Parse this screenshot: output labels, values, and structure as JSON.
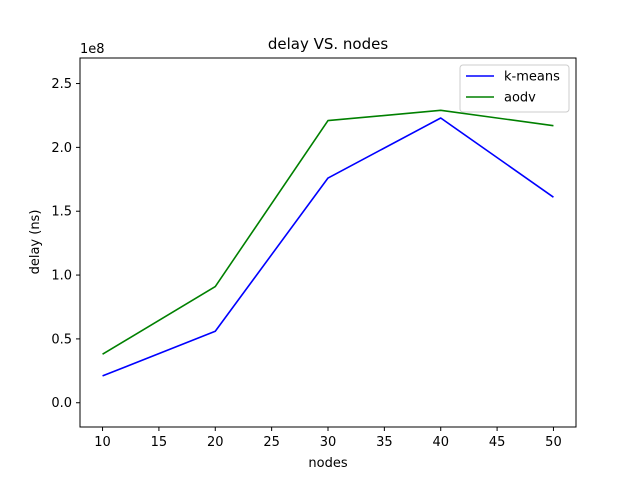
{
  "chart_data": {
    "type": "line",
    "title": "delay VS. nodes",
    "xlabel": "nodes",
    "ylabel": "delay (ns)",
    "y_scale_label": "1e8",
    "x": [
      10,
      20,
      30,
      40,
      50
    ],
    "xlim": [
      8,
      52
    ],
    "ylim": [
      -0.19,
      2.7
    ],
    "y_units_multiplier": 100000000,
    "x_ticks": [
      10,
      15,
      20,
      25,
      30,
      35,
      40,
      45,
      50
    ],
    "y_ticks": [
      0.0,
      0.5,
      1.0,
      1.5,
      2.0,
      2.5
    ],
    "x_tick_labels": [
      "10",
      "15",
      "20",
      "25",
      "30",
      "35",
      "40",
      "45",
      "50"
    ],
    "y_tick_labels": [
      "0.0",
      "0.5",
      "1.0",
      "1.5",
      "2.0",
      "2.5"
    ],
    "grid": false,
    "legend_position": "top-right",
    "series": [
      {
        "name": "k-means",
        "color": "#0000ff",
        "values": [
          0.21,
          0.56,
          1.76,
          2.23,
          1.61
        ]
      },
      {
        "name": "aodv",
        "color": "#008000",
        "values": [
          0.38,
          0.91,
          2.21,
          2.29,
          2.17
        ]
      }
    ]
  }
}
